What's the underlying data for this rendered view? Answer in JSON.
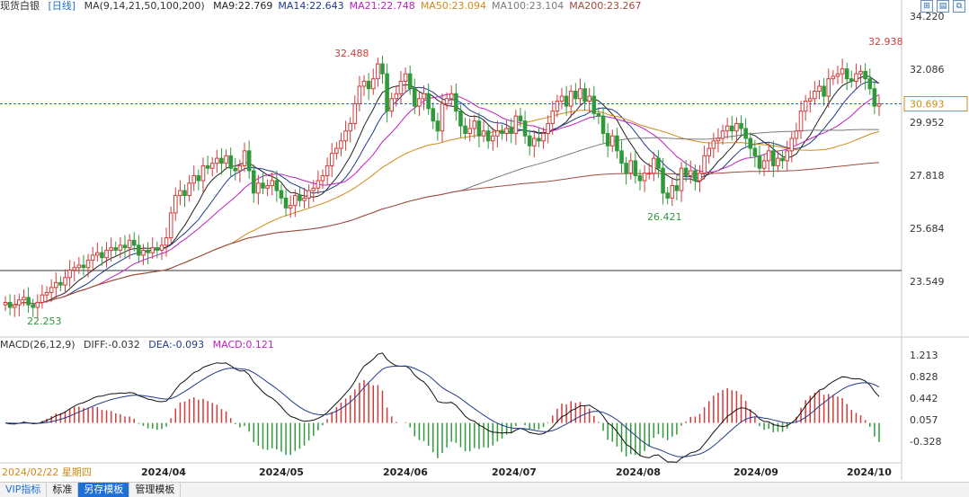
{
  "header": {
    "title": "现货白银",
    "period": "[日线]",
    "ma_label": "MA(9,14,21,50,100,200)",
    "ma_values": [
      {
        "text": "MA9:22.769",
        "color": "#222222"
      },
      {
        "text": "MA14:22.643",
        "color": "#1f3a8a"
      },
      {
        "text": "MA21:22.748",
        "color": "#c020c0"
      },
      {
        "text": "MA50:23.094",
        "color": "#d08a1a"
      },
      {
        "text": "MA100:23.104",
        "color": "#7a7a7a"
      },
      {
        "text": "MA200:23.267",
        "color": "#a24a3a"
      }
    ]
  },
  "macd_header": {
    "label": "MACD(26,12,9)",
    "diff": "DIFF:-0.032",
    "dea": "DEA:-0.093",
    "macd": "MACD:0.121"
  },
  "price_axis": [
    "34.220",
    "32.086",
    "29.952",
    "27.818",
    "25.684",
    "23.549"
  ],
  "macd_axis": [
    "1.213",
    "0.828",
    "0.442",
    "0.057",
    "-0.328"
  ],
  "date_axis": [
    "2024/04",
    "2024/05",
    "2024/06",
    "2024/07",
    "2024/08",
    "2024/09",
    "2024/10"
  ],
  "start_date": "2024/02/22 星期四",
  "current_price": "30.693",
  "annotations": {
    "low": "22.253",
    "high1": "32.488",
    "low2": "26.421",
    "high2": "32.938"
  },
  "tabs": [
    "VIP指标",
    "标准",
    "另存模板",
    "管理模板"
  ],
  "colors": {
    "up": "#d23b3b",
    "down": "#2f9a3a",
    "accent": "#1e6fd6"
  },
  "chart_data": {
    "type": "candlestick",
    "closes": [
      22.7,
      22.5,
      22.6,
      22.8,
      22.9,
      22.6,
      22.5,
      22.7,
      23.0,
      23.1,
      23.3,
      23.5,
      23.4,
      23.7,
      24.0,
      24.1,
      24.2,
      24.1,
      24.4,
      24.6,
      24.7,
      24.5,
      24.8,
      24.9,
      24.8,
      25.0,
      24.9,
      25.2,
      25.0,
      24.6,
      24.8,
      24.7,
      24.9,
      24.8,
      25.0,
      25.3,
      26.3,
      27.0,
      27.2,
      27.0,
      27.5,
      27.8,
      27.6,
      28.2,
      28.1,
      28.3,
      28.5,
      28.3,
      28.6,
      28.1,
      28.0,
      28.2,
      28.8,
      28.0,
      27.1,
      27.5,
      27.3,
      27.4,
      27.6,
      27.2,
      26.9,
      26.5,
      26.6,
      27.0,
      26.8,
      26.9,
      27.2,
      27.3,
      27.6,
      27.8,
      28.2,
      28.7,
      28.9,
      29.2,
      29.6,
      29.9,
      30.7,
      31.4,
      31.6,
      31.3,
      31.7,
      32.3,
      31.9,
      30.4,
      30.9,
      31.1,
      31.6,
      31.9,
      31.3,
      30.6,
      30.9,
      31.1,
      30.5,
      30.0,
      29.6,
      30.7,
      30.9,
      31.1,
      30.4,
      29.8,
      29.5,
      29.7,
      30.0,
      29.4,
      29.6,
      29.2,
      29.4,
      29.6,
      29.5,
      29.7,
      29.5,
      30.2,
      30.0,
      29.4,
      29.0,
      29.3,
      29.2,
      29.5,
      29.9,
      30.4,
      30.8,
      31.0,
      30.6,
      31.2,
      30.9,
      31.3,
      30.8,
      31.0,
      30.3,
      30.2,
      29.5,
      29.0,
      29.4,
      28.8,
      28.3,
      27.9,
      28.4,
      27.8,
      27.6,
      27.9,
      27.9,
      28.5,
      28.1,
      27.1,
      26.9,
      27.4,
      27.2,
      28.1,
      27.8,
      28.0,
      27.6,
      27.9,
      28.6,
      28.9,
      29.2,
      29.3,
      29.6,
      29.8,
      29.6,
      29.9,
      29.7,
      29.3,
      28.9,
      28.6,
      28.1,
      28.4,
      28.8,
      28.2,
      28.5,
      28.4,
      28.8,
      29.3,
      29.6,
      30.4,
      30.8,
      30.9,
      31.2,
      31.4,
      31.0,
      31.7,
      31.8,
      31.9,
      32.1,
      31.7,
      31.6,
      31.9,
      32.0,
      31.7,
      31.3,
      30.6,
      30.693
    ]
  }
}
